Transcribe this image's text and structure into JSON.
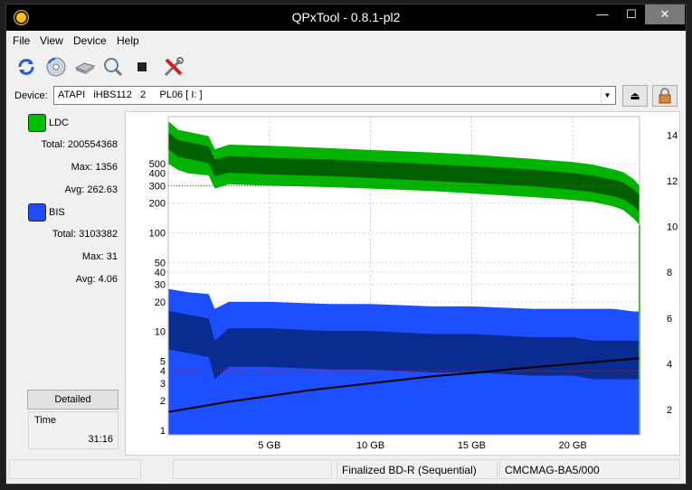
{
  "window": {
    "title": "QPxTool - 0.8.1-pl2",
    "minimize": "—",
    "maximize": "☐",
    "close": "✕"
  },
  "menu": [
    "File",
    "View",
    "Device",
    "Help"
  ],
  "toolbar": {
    "icons": [
      "refresh-icon",
      "disc-icon",
      "drive-icon",
      "magnify-icon",
      "stop-icon",
      "tools-icon"
    ]
  },
  "device": {
    "label": "Device:",
    "value": "ATAPI   iHBS112   2     PL06 [ I: ]",
    "eject_symbol": "⏏"
  },
  "stats": {
    "ldc": {
      "name": "LDC",
      "color": "#00c000",
      "total": "Total: 200554368",
      "max": "Max: 1356",
      "avg": "Avg: 262.63"
    },
    "bis": {
      "name": "BIS",
      "color": "#0040ff",
      "total": "Total: 3103382",
      "max": "Max: 31",
      "avg": "Avg: 4.06"
    }
  },
  "detailed_button": "Detailed",
  "time": {
    "label": "Time",
    "value": "31:16"
  },
  "status": {
    "media": "Finalized BD-R (Sequential)",
    "mid": "CMCMAG-BA5/000"
  },
  "chart_data": {
    "type": "area",
    "x_ticks": [
      "5 GB",
      "10 GB",
      "15 GB",
      "20 GB"
    ],
    "x_tick_values": [
      5,
      10,
      15,
      20
    ],
    "xlim": [
      0,
      23.3
    ],
    "y_left_log_ticks": [
      1,
      2,
      3,
      4,
      5,
      10,
      20,
      30,
      40,
      50,
      100,
      200,
      300,
      400,
      500
    ],
    "y_left_lim": [
      0.9,
      1500
    ],
    "y_right_ticks": [
      2,
      4,
      6,
      8,
      10,
      12,
      14
    ],
    "y_right_lim": [
      0.9,
      14.8
    ],
    "reference_lines": [
      {
        "axis": "left",
        "value": 300,
        "color": "#cc2222"
      },
      {
        "axis": "left",
        "value": 4,
        "color": "#cc2222"
      }
    ],
    "series": [
      {
        "name": "LDC",
        "color": "#00b400",
        "dark": "#006000",
        "x": [
          0,
          0.5,
          1,
          2,
          2.3,
          3,
          5,
          8,
          10,
          13,
          15,
          18,
          20,
          21,
          22,
          22.5,
          23,
          23.3
        ],
        "high": [
          1350,
          1100,
          1050,
          950,
          700,
          780,
          760,
          720,
          690,
          650,
          620,
          560,
          520,
          490,
          440,
          410,
          350,
          300
        ],
        "low": [
          500,
          430,
          400,
          380,
          280,
          310,
          300,
          290,
          280,
          265,
          250,
          230,
          215,
          205,
          185,
          170,
          140,
          120
        ],
        "avg": [
          900,
          750,
          720,
          650,
          480,
          520,
          500,
          480,
          460,
          430,
          410,
          380,
          350,
          330,
          300,
          280,
          240,
          210
        ]
      },
      {
        "name": "BIS",
        "color": "#1b4fff",
        "dark": "#0a2b8f",
        "x": [
          0,
          1,
          2,
          2.3,
          3,
          5,
          8,
          10,
          13,
          15,
          18,
          20,
          21,
          22,
          23,
          23.3
        ],
        "high": [
          27,
          25,
          24,
          17,
          20,
          20,
          19,
          19,
          18,
          18,
          17,
          17,
          17,
          17,
          16,
          16
        ],
        "low": [
          2,
          2,
          2,
          2,
          2,
          2,
          2.5,
          2.5,
          3,
          3,
          3,
          3,
          3,
          3,
          3,
          3
        ],
        "avg": [
          12,
          11,
          10,
          6,
          8,
          8,
          7.5,
          7.5,
          7,
          7,
          6.5,
          6.5,
          6,
          6,
          6,
          6
        ]
      },
      {
        "name": "Speed",
        "color": "#000000",
        "x": [
          0,
          1,
          2,
          3,
          5,
          7,
          10,
          13,
          15,
          18,
          20,
          22,
          23.3
        ],
        "y": [
          1.9,
          2.05,
          2.2,
          2.35,
          2.6,
          2.85,
          3.15,
          3.45,
          3.6,
          3.85,
          4.0,
          4.15,
          4.25
        ]
      }
    ]
  }
}
